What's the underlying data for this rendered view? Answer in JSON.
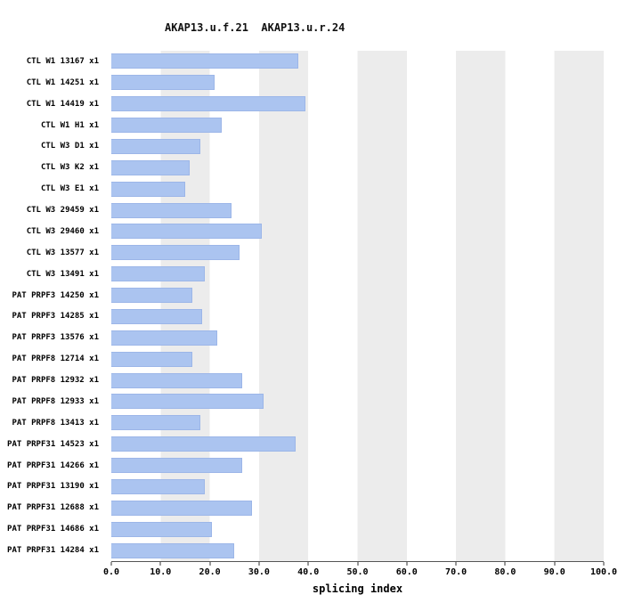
{
  "title": "AKAP13.u.f.21  AKAP13.u.r.24",
  "chart_data": {
    "type": "bar",
    "orientation": "horizontal",
    "title": "AKAP13.u.f.21  AKAP13.u.r.24",
    "xlabel": "splicing index",
    "xlim": [
      0,
      100
    ],
    "x_ticks": [
      "0.0",
      "10.0",
      "20.0",
      "30.0",
      "40.0",
      "50.0",
      "60.0",
      "70.0",
      "80.0",
      "90.0",
      "100.0"
    ],
    "grid": "vertical-stripes",
    "legend": "none",
    "bar_color": "#abc4f0",
    "bar_border_color": "#9cb6e8",
    "stripe_color": "#ececec",
    "categories": [
      "CTL W1 13167 x1",
      "CTL W1 14251 x1",
      "CTL W1 14419 x1",
      "CTL W1 H1 x1",
      "CTL W3 D1 x1",
      "CTL W3 K2 x1",
      "CTL W3 E1 x1",
      "CTL W3 29459 x1",
      "CTL W3 29460 x1",
      "CTL W3 13577 x1",
      "CTL W3 13491 x1",
      "PAT PRPF3 14250 x1",
      "PAT PRPF3 14285 x1",
      "PAT PRPF3 13576 x1",
      "PAT PRPF8 12714 x1",
      "PAT PRPF8 12932 x1",
      "PAT PRPF8 12933 x1",
      "PAT PRPF8 13413 x1",
      "PAT PRPF31 14523 x1",
      "PAT PRPF31 14266 x1",
      "PAT PRPF31 13190 x1",
      "PAT PRPF31 12688 x1",
      "PAT PRPF31 14686 x1",
      "PAT PRPF31 14284 x1"
    ],
    "values": [
      38.0,
      21.0,
      39.5,
      22.5,
      18.0,
      16.0,
      15.0,
      24.5,
      30.5,
      26.0,
      19.0,
      16.5,
      18.5,
      21.5,
      16.5,
      26.5,
      31.0,
      18.0,
      37.5,
      26.5,
      19.0,
      28.5,
      20.5,
      25.0
    ]
  }
}
